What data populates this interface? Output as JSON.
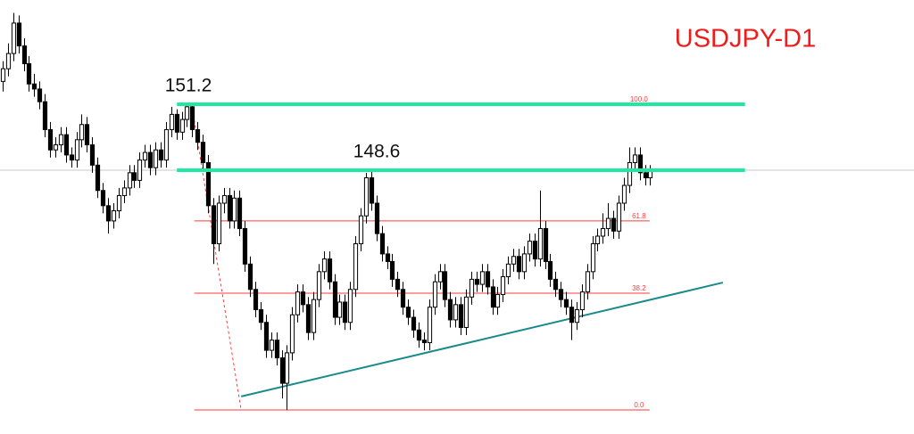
{
  "chart_data": {
    "type": "candlestick",
    "title": "USDJPY-D1",
    "title_color": "#ee1c1c",
    "xlim": [
      -0.5,
      173.1
    ],
    "ylim": [
      138.2,
      155.31
    ],
    "up_color": "#ffffff",
    "down_color": "#000000",
    "edge_color": "#000000",
    "ohlc": [
      [
        152.1,
        152.9,
        151.7,
        152.6
      ],
      [
        152.6,
        153.6,
        152.3,
        153.2
      ],
      [
        153.2,
        154.8,
        152.9,
        154.4
      ],
      [
        154.4,
        154.7,
        153.2,
        153.5
      ],
      [
        153.5,
        153.8,
        152.5,
        152.8
      ],
      [
        152.8,
        153.1,
        151.7,
        152.0
      ],
      [
        152.0,
        152.4,
        151.5,
        151.8
      ],
      [
        151.8,
        152.1,
        151.0,
        151.3
      ],
      [
        151.3,
        151.6,
        149.9,
        150.2
      ],
      [
        150.2,
        150.5,
        149.1,
        149.4
      ],
      [
        149.4,
        149.9,
        149.1,
        149.6
      ],
      [
        149.6,
        150.3,
        149.3,
        150.0
      ],
      [
        150.0,
        150.3,
        148.9,
        149.2
      ],
      [
        149.2,
        149.5,
        148.7,
        149.0
      ],
      [
        149.0,
        150.1,
        148.7,
        149.8
      ],
      [
        149.8,
        150.8,
        149.5,
        150.4
      ],
      [
        150.4,
        150.7,
        149.3,
        149.6
      ],
      [
        149.6,
        149.9,
        148.5,
        148.8
      ],
      [
        148.8,
        149.1,
        147.5,
        147.8
      ],
      [
        147.8,
        148.1,
        146.9,
        147.2
      ],
      [
        147.2,
        147.5,
        146.1,
        146.6
      ],
      [
        146.6,
        147.3,
        146.3,
        147.0
      ],
      [
        147.0,
        147.9,
        146.7,
        147.6
      ],
      [
        147.6,
        148.2,
        147.3,
        147.9
      ],
      [
        147.9,
        148.8,
        147.6,
        148.5
      ],
      [
        148.5,
        148.8,
        147.9,
        148.2
      ],
      [
        148.2,
        149.3,
        147.9,
        149.0
      ],
      [
        149.0,
        149.6,
        148.7,
        149.3
      ],
      [
        149.3,
        149.6,
        148.4,
        148.7
      ],
      [
        148.7,
        149.7,
        148.4,
        149.4
      ],
      [
        149.4,
        149.7,
        148.7,
        149.0
      ],
      [
        149.0,
        150.5,
        148.7,
        150.2
      ],
      [
        150.2,
        151.1,
        149.9,
        150.8
      ],
      [
        150.8,
        151.0,
        149.8,
        150.1
      ],
      [
        150.1,
        150.9,
        149.8,
        150.6
      ],
      [
        150.6,
        151.2,
        150.3,
        151.1
      ],
      [
        151.1,
        151.2,
        149.9,
        150.2
      ],
      [
        150.2,
        150.5,
        149.4,
        149.7
      ],
      [
        149.7,
        150.0,
        148.6,
        148.9
      ],
      [
        148.9,
        149.2,
        146.9,
        147.2
      ],
      [
        147.2,
        147.5,
        144.9,
        145.7
      ],
      [
        145.7,
        147.6,
        145.4,
        147.3
      ],
      [
        147.3,
        147.9,
        146.9,
        147.6
      ],
      [
        147.6,
        147.9,
        146.3,
        146.6
      ],
      [
        146.6,
        147.8,
        146.3,
        147.5
      ],
      [
        147.5,
        147.8,
        146.0,
        146.3
      ],
      [
        146.3,
        146.6,
        144.6,
        144.9
      ],
      [
        144.9,
        145.2,
        143.6,
        143.9
      ],
      [
        143.9,
        144.2,
        142.8,
        143.1
      ],
      [
        143.1,
        143.4,
        142.3,
        142.6
      ],
      [
        142.6,
        142.9,
        141.2,
        141.5
      ],
      [
        141.5,
        142.2,
        141.2,
        141.9
      ],
      [
        141.9,
        142.2,
        140.9,
        141.2
      ],
      [
        141.2,
        141.5,
        139.6,
        140.2
      ],
      [
        140.2,
        141.7,
        139.15,
        141.4
      ],
      [
        141.4,
        143.2,
        141.1,
        142.9
      ],
      [
        142.9,
        144.1,
        142.6,
        143.8
      ],
      [
        143.8,
        144.1,
        143.0,
        143.3
      ],
      [
        143.3,
        143.6,
        141.9,
        142.2
      ],
      [
        142.2,
        143.8,
        141.9,
        143.5
      ],
      [
        143.5,
        144.9,
        143.2,
        144.6
      ],
      [
        144.6,
        145.4,
        144.3,
        145.1
      ],
      [
        145.1,
        145.4,
        143.9,
        144.2
      ],
      [
        144.2,
        144.5,
        142.5,
        142.8
      ],
      [
        142.8,
        143.7,
        142.5,
        143.4
      ],
      [
        143.4,
        143.7,
        142.3,
        142.6
      ],
      [
        142.6,
        144.2,
        142.3,
        143.9
      ],
      [
        143.9,
        146.0,
        143.6,
        145.7
      ],
      [
        145.7,
        147.1,
        145.4,
        146.8
      ],
      [
        146.8,
        148.5,
        146.5,
        148.3
      ],
      [
        148.3,
        148.6,
        147.0,
        147.3
      ],
      [
        147.3,
        147.6,
        145.8,
        146.1
      ],
      [
        146.1,
        146.4,
        145.0,
        145.3
      ],
      [
        145.3,
        145.6,
        144.7,
        145.0
      ],
      [
        145.0,
        145.3,
        144.0,
        144.3
      ],
      [
        144.3,
        144.6,
        143.6,
        143.9
      ],
      [
        143.9,
        144.2,
        142.9,
        143.2
      ],
      [
        143.2,
        143.5,
        142.5,
        142.8
      ],
      [
        142.8,
        143.1,
        142.0,
        142.3
      ],
      [
        142.3,
        142.6,
        141.6,
        141.9
      ],
      [
        141.9,
        142.2,
        141.5,
        141.8
      ],
      [
        141.8,
        143.5,
        141.5,
        143.2
      ],
      [
        143.2,
        144.5,
        142.9,
        144.2
      ],
      [
        144.2,
        144.9,
        143.9,
        144.6
      ],
      [
        144.6,
        144.9,
        143.2,
        143.5
      ],
      [
        143.5,
        143.8,
        142.4,
        142.7
      ],
      [
        142.7,
        143.6,
        142.4,
        143.3
      ],
      [
        143.3,
        143.6,
        142.1,
        142.4
      ],
      [
        142.4,
        143.9,
        142.1,
        143.6
      ],
      [
        143.6,
        144.6,
        143.3,
        144.3
      ],
      [
        144.3,
        144.6,
        143.8,
        144.1
      ],
      [
        144.1,
        144.9,
        143.8,
        144.6
      ],
      [
        144.6,
        144.9,
        143.7,
        144.0
      ],
      [
        144.0,
        144.3,
        142.9,
        143.2
      ],
      [
        143.2,
        144.0,
        142.9,
        143.7
      ],
      [
        143.7,
        144.7,
        143.4,
        144.4
      ],
      [
        144.4,
        145.2,
        144.1,
        144.9
      ],
      [
        144.9,
        145.5,
        144.6,
        145.2
      ],
      [
        145.2,
        145.5,
        144.3,
        144.6
      ],
      [
        144.6,
        145.6,
        144.3,
        145.3
      ],
      [
        145.3,
        146.1,
        145.0,
        145.8
      ],
      [
        145.8,
        146.1,
        144.8,
        145.1
      ],
      [
        145.1,
        147.8,
        144.8,
        146.3
      ],
      [
        146.3,
        146.6,
        144.7,
        145.0
      ],
      [
        145.0,
        145.3,
        144.0,
        144.3
      ],
      [
        144.3,
        144.6,
        143.6,
        143.9
      ],
      [
        143.9,
        144.2,
        143.2,
        143.5
      ],
      [
        143.5,
        143.8,
        142.9,
        143.2
      ],
      [
        143.2,
        143.5,
        141.9,
        142.6
      ],
      [
        142.6,
        143.4,
        142.3,
        143.1
      ],
      [
        143.1,
        144.1,
        142.8,
        143.8
      ],
      [
        143.8,
        144.9,
        143.5,
        144.6
      ],
      [
        144.6,
        146.0,
        144.3,
        145.7
      ],
      [
        145.7,
        146.3,
        145.4,
        146.0
      ],
      [
        146.0,
        146.9,
        145.7,
        146.3
      ],
      [
        146.3,
        147.3,
        146.0,
        146.7
      ],
      [
        146.7,
        147.0,
        145.9,
        146.2
      ],
      [
        146.2,
        147.6,
        145.9,
        147.3
      ],
      [
        147.3,
        148.3,
        147.0,
        148.0
      ],
      [
        148.0,
        149.5,
        147.7,
        148.9
      ],
      [
        148.9,
        149.5,
        148.6,
        149.2
      ],
      [
        149.2,
        149.5,
        148.2,
        148.5
      ],
      [
        148.5,
        148.8,
        148.0,
        148.3
      ],
      [
        148.3,
        148.8,
        148.0,
        148.6
      ]
    ],
    "last_price_line": {
      "value": 148.6,
      "color": "#c8c8c8"
    },
    "fibonacci": {
      "color": "#ff3b3b",
      "from": 36.4,
      "to": 122.9,
      "levels": [
        {
          "label": "100.0",
          "value": 151.2
        },
        {
          "label": "61.8",
          "value": 146.6
        },
        {
          "label": "38.2",
          "value": 143.75
        },
        {
          "label": "0.0",
          "value": 139.15
        }
      ],
      "anchor_line": {
        "x": [
          35.9,
          45.3
        ],
        "y": [
          151.2,
          139.15
        ]
      }
    },
    "levels": [
      {
        "label": "151.2",
        "value": 151.2,
        "from": 33.1,
        "to": 141.0,
        "color": "#1de9a0"
      },
      {
        "label": "148.6",
        "value": 148.6,
        "from": 33.1,
        "to": 141.0,
        "color": "#1de9a0"
      }
    ],
    "trendline": {
      "x": [
        45.3,
        136.8
      ],
      "y": [
        139.68,
        144.17
      ],
      "color": "#1a8a8a"
    }
  }
}
